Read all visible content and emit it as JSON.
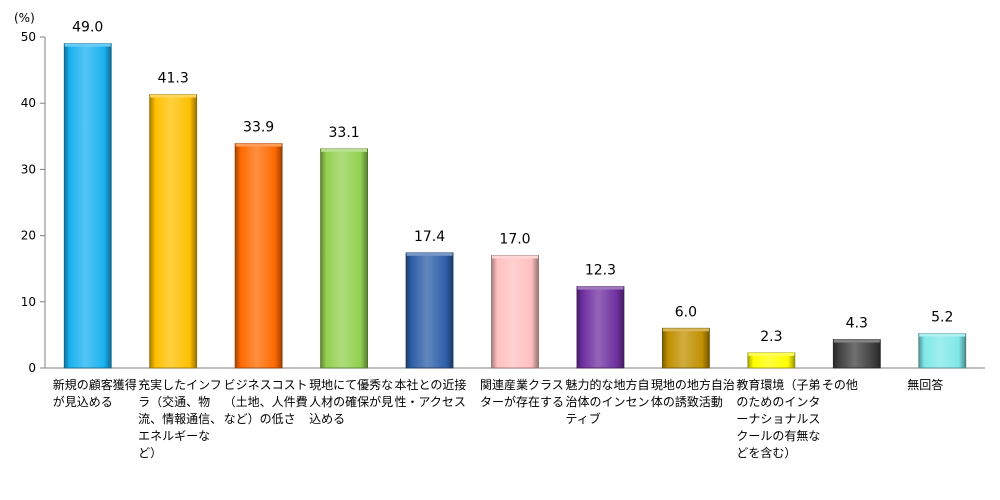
{
  "chart_data": {
    "type": "bar",
    "unit_label": "(%)",
    "ylim": [
      0,
      50
    ],
    "yticks": [
      "0",
      "10",
      "20",
      "30",
      "40",
      "50"
    ],
    "categories": [
      "新規の顧客獲得が見込める",
      "充実したインフラ（交通、物流、情報通信、エネルギーなど）",
      "ビジネスコスト（土地、人件費など）の低さ",
      "現地にて優秀な人材の確保が見込める",
      "本社との近接性・アクセス",
      "関連産業クラスターが存在する",
      "魅力的な地方自治体のインセンティブ",
      "現地の地方自治体の誘致活動",
      "教育環境（子弟のためのインターナショナルスクールの有無などを含む）",
      "その他",
      "無回答"
    ],
    "values": [
      49.0,
      41.3,
      33.9,
      33.1,
      17.4,
      17.0,
      12.3,
      6.0,
      2.3,
      4.3,
      5.2
    ],
    "value_labels": [
      "49.0",
      "41.3",
      "33.9",
      "33.1",
      "17.4",
      "17.0",
      "12.3",
      "6.0",
      "2.3",
      "4.3",
      "5.2"
    ],
    "colors": [
      "#1ab2f0",
      "#ffc000",
      "#ff6a00",
      "#92d050",
      "#2e5fa8",
      "#ffc0c0",
      "#7030a0",
      "#c09000",
      "#ffff00",
      "#404040",
      "#80e8e8"
    ],
    "grid": false,
    "legend": "none"
  }
}
